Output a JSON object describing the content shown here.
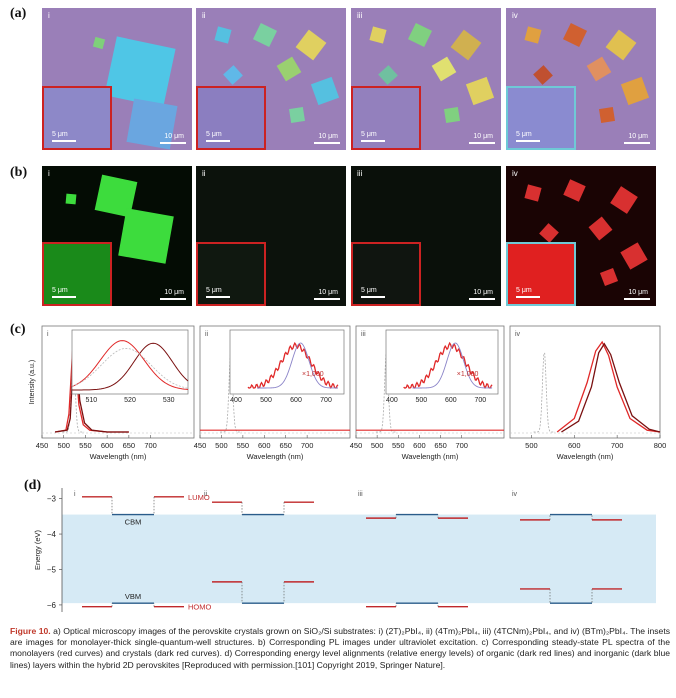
{
  "panels": {
    "a": {
      "label": "(a)",
      "subs": [
        "i",
        "ii",
        "iii",
        "iv"
      ],
      "scale_main": "10 μm",
      "scale_inset": "5 μm"
    },
    "b": {
      "label": "(b)",
      "subs": [
        "i",
        "ii",
        "iii",
        "iv"
      ],
      "scale_main": "10 μm",
      "scale_inset": "5 μm"
    },
    "c": {
      "label": "(c)",
      "subs": [
        "i",
        "ii",
        "iii",
        "iv"
      ]
    },
    "d": {
      "label": "(d)",
      "subs": [
        "i",
        "ii",
        "iii",
        "iv"
      ]
    }
  },
  "colors": {
    "a_bg": "#9a7fb8",
    "inset_red": "#cc2222",
    "inset_cyan": "#6fc9d6",
    "b_green": "#3ddc3d",
    "b_red": "#e02020",
    "pl_red": "#e02828",
    "pl_darkred": "#7a1010",
    "lumo": "#c0282a",
    "cbm": "#2a5c8a",
    "band": "#d6eaf5"
  },
  "chart_data": [
    {
      "type": "line",
      "panel": "c-i",
      "ylabel": "Intensity (a.u.)",
      "xlabel": "Wavelength (nm)",
      "xlim": [
        450,
        800
      ],
      "x_ticks": [
        "450",
        "500",
        "550",
        "600",
        "650",
        "700"
      ],
      "series": [
        {
          "x": [
            480,
            505,
            512,
            518,
            521,
            524,
            528,
            535,
            545,
            560,
            600,
            650
          ],
          "y": [
            0,
            0.02,
            0.2,
            0.7,
            0.95,
            1.0,
            0.75,
            0.3,
            0.08,
            0.02,
            0,
            0
          ]
        },
        {
          "x": [
            480,
            508,
            515,
            520,
            523,
            526,
            530,
            537,
            548,
            565,
            600,
            650
          ],
          "y": [
            0,
            0.02,
            0.15,
            0.6,
            0.9,
            0.98,
            0.8,
            0.35,
            0.1,
            0.02,
            0,
            0
          ]
        }
      ],
      "inset": {
        "x_ticks": [
          "510",
          "520",
          "530"
        ],
        "xlim": [
          505,
          535
        ]
      }
    },
    {
      "type": "line",
      "panel": "c-ii",
      "xlabel": "Wavelength (nm)",
      "xlim": [
        450,
        800
      ],
      "x_ticks": [
        "450",
        "500",
        "550",
        "600",
        "650",
        "700"
      ],
      "inset": {
        "x_ticks": [
          "400",
          "500",
          "600",
          "700"
        ],
        "annotation": "×1,000"
      }
    },
    {
      "type": "line",
      "panel": "c-iii",
      "xlabel": "Wavelength (nm)",
      "xlim": [
        450,
        800
      ],
      "x_ticks": [
        "450",
        "500",
        "550",
        "600",
        "650",
        "700"
      ],
      "inset": {
        "x_ticks": [
          "400",
          "500",
          "600",
          "700"
        ],
        "annotation": "×1,000"
      }
    },
    {
      "type": "line",
      "panel": "c-iv",
      "xlabel": "Wavelength (nm)",
      "xlim": [
        450,
        800
      ],
      "x_ticks": [
        "500",
        "600",
        "700",
        "800"
      ],
      "series": [
        {
          "x": [
            560,
            600,
            630,
            650,
            665,
            680,
            700,
            730,
            770,
            800
          ],
          "y": [
            0,
            0.15,
            0.55,
            0.9,
            1.0,
            0.85,
            0.5,
            0.15,
            0.02,
            0
          ]
        },
        {
          "x": [
            570,
            610,
            640,
            657,
            670,
            685,
            705,
            735,
            775,
            800
          ],
          "y": [
            0,
            0.12,
            0.5,
            0.88,
            0.98,
            0.86,
            0.55,
            0.18,
            0.03,
            0
          ]
        }
      ]
    },
    {
      "type": "line",
      "panel": "d",
      "ylabel": "Energy (eV)",
      "y_ticks": [
        "−3",
        "−4",
        "−5",
        "−6"
      ],
      "ylim": [
        -6.2,
        -2.7
      ],
      "labels": {
        "lumo": "LUMO",
        "homo": "HOMO",
        "cbm": "CBM",
        "vbm": "VBM"
      },
      "levels": [
        {
          "lumo": -2.95,
          "homo": -6.05,
          "cbm": -3.45,
          "vbm": -5.95
        },
        {
          "lumo": -3.1,
          "homo": -5.35,
          "cbm": -3.45,
          "vbm": -5.95
        },
        {
          "lumo": -3.55,
          "homo": -6.05,
          "cbm": -3.45,
          "vbm": -5.95
        },
        {
          "lumo": -3.6,
          "homo": -5.55,
          "cbm": -3.45,
          "vbm": -5.95
        }
      ]
    }
  ],
  "caption": {
    "label": "Figure 10.",
    "text": " a) Optical microscopy images of the perovskite crystals grown on SiO₂/Si substrates: i) (2T)₂PbI₄, ii) (4Tm)₂PbI₄, iii) (4TCNm)₂PbI₄, and iv) (BTm)₂PbI₄. The insets are images for monolayer-thick single-quantum-well structures. b) Corresponding PL images under ultraviolet excitation. c) Corresponding steady-state PL spectra of the monolayers (red curves) and crystals (dark red curves). d) Corresponding energy level alignments (relative energy levels) of organic (dark red lines) and inorganic (dark blue lines) layers within the hybrid 2D perovskites [Reproduced with permission.[101] Copyright 2019, Springer Nature]."
  }
}
